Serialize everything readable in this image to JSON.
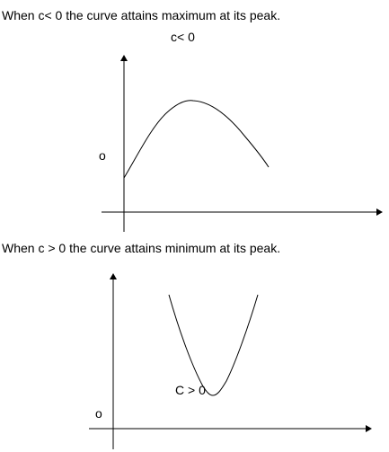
{
  "top_section": {
    "caption": "When c< 0 the curve attains maximum at its peak.",
    "graph_title": "c< 0",
    "origin_label": "o"
  },
  "bottom_section": {
    "caption": "When c > 0 the curve attains minimum at its peak.",
    "curve_label": "C > 0",
    "origin_label": "o"
  },
  "colors": {
    "ink": "#000000",
    "background": "#ffffff"
  }
}
